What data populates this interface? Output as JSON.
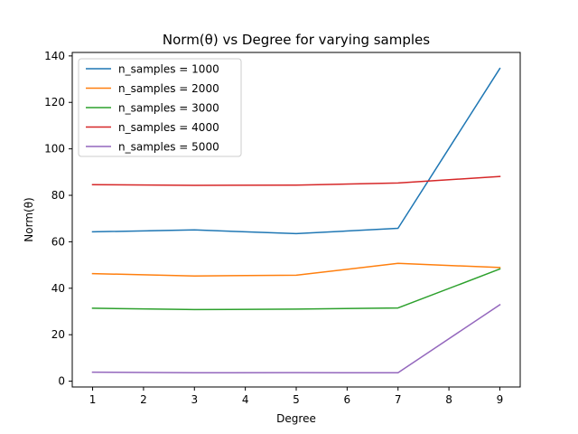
{
  "chart_data": {
    "type": "line",
    "title": "Norm(θ) vs Degree for varying samples",
    "xlabel": "Degree",
    "ylabel": "Norm(θ)",
    "xlim": [
      0.6,
      9.4
    ],
    "ylim": [
      -2.5,
      141.5
    ],
    "xticks": [
      1,
      2,
      3,
      4,
      5,
      6,
      7,
      8,
      9
    ],
    "yticks": [
      0,
      20,
      40,
      60,
      80,
      100,
      120,
      140
    ],
    "grid": false,
    "legend_position": "top-left",
    "x": [
      1,
      3,
      5,
      7,
      9
    ],
    "series": [
      {
        "name": "n_samples = 1000",
        "color": "#1f77b4",
        "values": [
          64.3,
          65.1,
          63.5,
          65.8,
          134.6
        ]
      },
      {
        "name": "n_samples = 2000",
        "color": "#ff7f0e",
        "values": [
          46.3,
          45.3,
          45.6,
          50.7,
          48.9
        ]
      },
      {
        "name": "n_samples = 3000",
        "color": "#2ca02c",
        "values": [
          31.4,
          30.8,
          31.0,
          31.5,
          48.3
        ]
      },
      {
        "name": "n_samples = 4000",
        "color": "#d62728",
        "values": [
          84.6,
          84.3,
          84.4,
          85.3,
          88.1
        ]
      },
      {
        "name": "n_samples = 5000",
        "color": "#9467bd",
        "values": [
          3.9,
          3.6,
          3.7,
          3.6,
          32.9
        ]
      }
    ]
  }
}
